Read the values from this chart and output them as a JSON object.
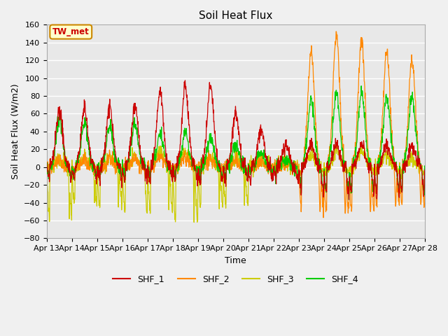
{
  "title": "Soil Heat Flux",
  "xlabel": "Time",
  "ylabel": "Soil Heat Flux (W/m2)",
  "ylim": [
    -80,
    160
  ],
  "yticks": [
    -80,
    -60,
    -40,
    -20,
    0,
    20,
    40,
    60,
    80,
    100,
    120,
    140,
    160
  ],
  "xtick_labels": [
    "Apr 13",
    "Apr 14",
    "Apr 15",
    "Apr 16",
    "Apr 17",
    "Apr 18",
    "Apr 19",
    "Apr 20",
    "Apr 21",
    "Apr 22",
    "Apr 23",
    "Apr 24",
    "Apr 25",
    "Apr 26",
    "Apr 27",
    "Apr 28"
  ],
  "colors": {
    "SHF_1": "#cc0000",
    "SHF_2": "#ff8800",
    "SHF_3": "#cccc00",
    "SHF_4": "#00cc00"
  },
  "annotation_text": "TW_met",
  "annotation_bg": "#ffffcc",
  "annotation_border": "#cc8800",
  "plot_bg_color": "#e8e8e8",
  "fig_bg_color": "#f0f0f0",
  "grid_color": "#ffffff",
  "title_fontsize": 11,
  "label_fontsize": 9,
  "tick_fontsize": 8
}
